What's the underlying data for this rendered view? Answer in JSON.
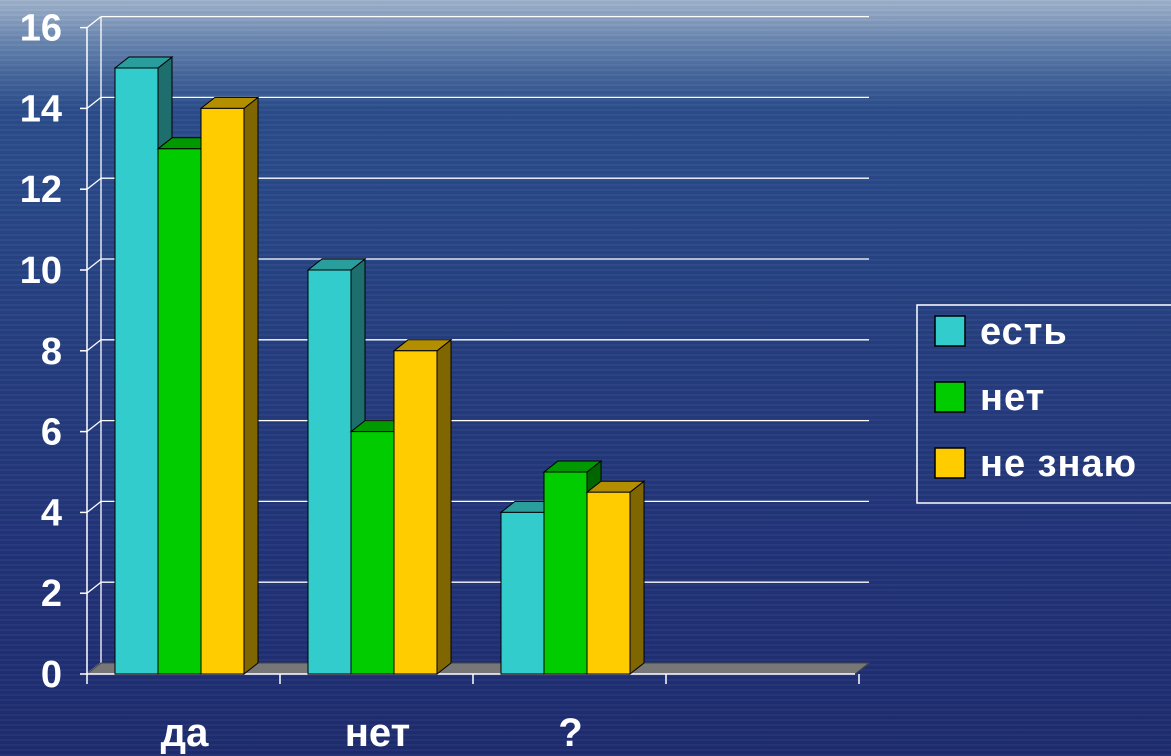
{
  "chart_data": {
    "type": "bar",
    "title": "",
    "xlabel": "",
    "ylabel": "",
    "categories": [
      "да",
      "нет",
      "?"
    ],
    "series": [
      {
        "name": "есть",
        "values": [
          15,
          10,
          4
        ],
        "color": "#33cccc",
        "side": "#1f6e6e",
        "top": "#2a9d9d"
      },
      {
        "name": "нет",
        "values": [
          13,
          6,
          5
        ],
        "color": "#00cc00",
        "side": "#006600",
        "top": "#009900"
      },
      {
        "name": "не знаю",
        "values": [
          14,
          8,
          4.5
        ],
        "color": "#ffcc00",
        "side": "#806600",
        "top": "#b38f00"
      }
    ],
    "ylim": [
      0,
      16
    ],
    "yticks": [
      0,
      2,
      4,
      6,
      8,
      10,
      12,
      14,
      16
    ],
    "grid": true,
    "legend_position": "right",
    "three_d": true
  }
}
